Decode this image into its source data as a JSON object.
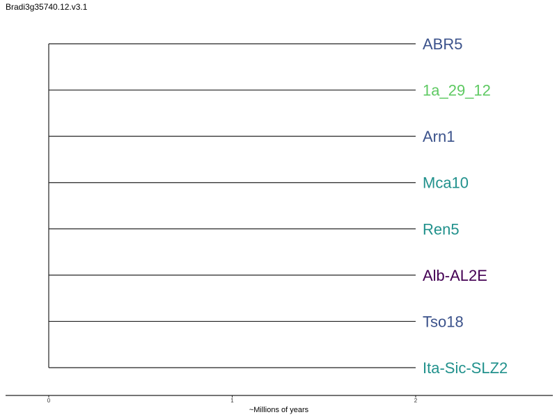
{
  "title": "Bradi3g35740.12.v3.1",
  "tree": {
    "leaves": [
      {
        "label": "ABR5",
        "color": "#3b528b",
        "age": 2
      },
      {
        "label": "1a_29_12",
        "color": "#5ec962",
        "age": 2
      },
      {
        "label": "Arn1",
        "color": "#3b528b",
        "age": 2
      },
      {
        "label": "Mca10",
        "color": "#21918c",
        "age": 2
      },
      {
        "label": "Ren5",
        "color": "#21918c",
        "age": 2
      },
      {
        "label": "Alb-AL2E",
        "color": "#440154",
        "age": 2
      },
      {
        "label": "Tso18",
        "color": "#3b528b",
        "age": 2
      },
      {
        "label": "Ita-Sic-SLZ2",
        "color": "#21918c",
        "age": 2
      }
    ],
    "root_age": 0
  },
  "axis": {
    "label": "~Millions of years",
    "ticks": [
      "0",
      "1",
      "2"
    ],
    "range": [
      0,
      2
    ]
  }
}
